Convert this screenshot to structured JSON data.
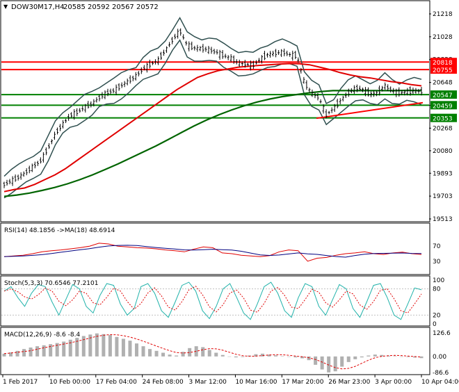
{
  "header": {
    "arrow": "▼",
    "symbol": "DOW30M17,H4",
    "ohlc": "20585 20592 20567 20572"
  },
  "colors": {
    "background": "#ffffff",
    "border": "#000000",
    "candle": "#000000",
    "ma_red": "#e00000",
    "ma_green": "#006400",
    "bands": "#2f4f4f",
    "level_red": "#ff0000",
    "level_green": "#008000",
    "rsi": "#e00000",
    "rsi_ma": "#000080",
    "stoch_main": "#20b2aa",
    "stoch_signal": "#e00000",
    "macd_hist": "#b0b0b0",
    "macd_signal": "#e00000"
  },
  "chart_data": [
    {
      "type": "candlestick",
      "title": "DOW30M17,H4",
      "ohlc_last": {
        "open": 20585,
        "high": 20592,
        "low": 20567,
        "close": 20572
      },
      "x_ticks": [
        "1 Feb 2017",
        "10 Feb 00:00",
        "17 Feb 04:00",
        "24 Feb 08:00",
        "3 Mar 12:00",
        "10 Mar 16:00",
        "17 Mar 20:00",
        "26 Mar 23:00",
        "3 Apr 00:00",
        "10 Apr 04:00"
      ],
      "y_ticks": [
        21218,
        21028,
        20838,
        20648,
        20458,
        20268,
        20080,
        19893,
        19703,
        19513
      ],
      "ylim": [
        19513,
        21218
      ],
      "grid": false,
      "close_path": [
        19798,
        19830,
        19860,
        19900,
        19950,
        19995,
        20100,
        20220,
        20300,
        20370,
        20400,
        20440,
        20470,
        20520,
        20560,
        20580,
        20620,
        20660,
        20700,
        20760,
        20800,
        20830,
        20910,
        21000,
        21080,
        20960,
        20935,
        20930,
        20920,
        20900,
        20870,
        20850,
        20810,
        20800,
        20790,
        20840,
        20880,
        20890,
        20900,
        20880,
        20870,
        20650,
        20560,
        20520,
        20380,
        20430,
        20500,
        20560,
        20600,
        20590,
        20550,
        20560,
        20620,
        20580,
        20560,
        20570,
        20580,
        20572
      ],
      "ma_red": [
        19740,
        19758,
        19770,
        19800,
        19840,
        19880,
        19930,
        19990,
        20050,
        20110,
        20170,
        20230,
        20290,
        20350,
        20410,
        20470,
        20530,
        20590,
        20640,
        20690,
        20720,
        20745,
        20760,
        20775,
        20782,
        20790,
        20795,
        20800,
        20805,
        20803,
        20795,
        20775,
        20755,
        20730,
        20710,
        20695,
        20685,
        20670,
        20655,
        20645,
        20630,
        20620
      ],
      "ma_green": [
        19700,
        19712,
        19728,
        19750,
        19775,
        19805,
        19840,
        19880,
        19925,
        19970,
        20020,
        20070,
        20120,
        20175,
        20230,
        20285,
        20335,
        20380,
        20420,
        20455,
        20485,
        20510,
        20530,
        20545,
        20560,
        20572,
        20580,
        20580,
        20580,
        20580,
        20580,
        20580,
        20582,
        20580
      ],
      "levels": [
        {
          "value": 20818,
          "label": "20818",
          "color": "#ff0000"
        },
        {
          "value": 20755,
          "label": "20755",
          "color": "#ff0000"
        },
        {
          "value": 20547,
          "label": "20547",
          "color": "#008000"
        },
        {
          "value": 20459,
          "label": "20459",
          "color": "#008000"
        },
        {
          "value": 20353,
          "label": "20353",
          "color": "#008000"
        }
      ],
      "trendline": {
        "from": 20350,
        "to": 20480
      }
    },
    {
      "type": "line",
      "title": "RSI(14) 48.1856 ->MA(18) 48.6914",
      "series": [
        {
          "name": "RSI(14)",
          "value": 48.1856
        },
        {
          "name": "MA(18)",
          "value": 48.6914
        }
      ],
      "y_ticks": [
        70,
        30
      ],
      "ylim": [
        0,
        100
      ],
      "rsi_path": [
        42,
        44,
        46,
        50,
        55,
        58,
        60,
        63,
        66,
        70,
        78,
        76,
        70,
        68,
        66,
        65,
        63,
        60,
        58,
        55,
        62,
        68,
        66,
        52,
        50,
        46,
        44,
        42,
        45,
        55,
        60,
        58,
        30,
        38,
        40,
        46,
        50,
        52,
        55,
        50,
        48,
        52,
        54,
        50,
        48
      ]
    },
    {
      "type": "line",
      "title": "Stoch(5,3,3) 70.6546 77.2101",
      "series": [
        {
          "name": "%K",
          "value": 70.6546
        },
        {
          "name": "%D",
          "value": 77.2101
        }
      ],
      "y_ticks": [
        100,
        80,
        20,
        0
      ],
      "ylim": [
        0,
        100
      ],
      "stoch_path": [
        75,
        85,
        60,
        40,
        70,
        90,
        85,
        50,
        20,
        55,
        90,
        80,
        40,
        25,
        65,
        92,
        88,
        45,
        20,
        35,
        85,
        92,
        70,
        30,
        15,
        50,
        88,
        95,
        75,
        30,
        12,
        40,
        80,
        92,
        60,
        25,
        10,
        45,
        85,
        95,
        70,
        30,
        15,
        60,
        92,
        85,
        40,
        20,
        55,
        90,
        80,
        35,
        15,
        50,
        88,
        92,
        60,
        20,
        10,
        45,
        82,
        78
      ]
    },
    {
      "type": "bar",
      "title": "MACD(12,26,9) -8.6 -8.4",
      "series": [
        {
          "name": "MACD",
          "value": -8.6
        },
        {
          "name": "Signal",
          "value": -8.4
        }
      ],
      "y_ticks": [
        126.6,
        0.0,
        -86.6
      ],
      "ylim": [
        -86.6,
        126.6
      ],
      "histogram": [
        15,
        22,
        30,
        40,
        48,
        55,
        60,
        66,
        72,
        80,
        90,
        100,
        110,
        118,
        124,
        120,
        115,
        105,
        95,
        85,
        70,
        55,
        40,
        30,
        20,
        10,
        5,
        25,
        45,
        55,
        50,
        35,
        20,
        8,
        0,
        -5,
        -3,
        5,
        12,
        15,
        10,
        6,
        2,
        -2,
        -5,
        -10,
        -20,
        -45,
        -70,
        -86,
        -80,
        -55,
        -30,
        -15,
        -5,
        5,
        10,
        8,
        4,
        2,
        0,
        -3,
        -6,
        -9
      ]
    }
  ],
  "x_labels": [
    "1 Feb 2017",
    "10 Feb 00:00",
    "17 Feb 04:00",
    "24 Feb 08:00",
    "3 Mar 12:00",
    "10 Mar 16:00",
    "17 Mar 20:00",
    "26 Mar 23:00",
    "3 Apr 00:00",
    "10 Apr 04:00"
  ],
  "price_labels": [
    "21218",
    "21028",
    "20838",
    "20648",
    "20458",
    "20268",
    "20080",
    "19893",
    "19703",
    "19513"
  ],
  "rsi_labels": [
    "70",
    "30"
  ],
  "stoch_labels": [
    "100",
    "80",
    "20",
    "0"
  ],
  "macd_labels": [
    "126.6",
    "0.00",
    "-86.6"
  ]
}
